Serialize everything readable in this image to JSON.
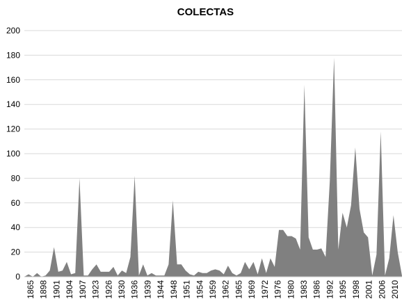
{
  "chart_data": {
    "type": "area",
    "title": "COLECTAS",
    "xlabel": "",
    "ylabel": "",
    "ylim": [
      0,
      200
    ],
    "yticks": [
      0,
      20,
      40,
      60,
      80,
      100,
      120,
      140,
      160,
      180,
      200
    ],
    "grid": true,
    "legend": "none",
    "x_tick_labels": [
      "1865",
      "1898",
      "1901",
      "1904",
      "1907",
      "1923",
      "1926",
      "1930",
      "1936",
      "1939",
      "1944",
      "1948",
      "1951",
      "1954",
      "1959",
      "1962",
      "1965",
      "1969",
      "1972",
      "1976",
      "1980",
      "1983",
      "1986",
      "1992",
      "1995",
      "1998",
      "2001",
      "2006",
      "2010"
    ],
    "series": [
      {
        "values": [
          0,
          2,
          0,
          3,
          0,
          1,
          5,
          24,
          4,
          5,
          12,
          2,
          3,
          80,
          1,
          1,
          6,
          10,
          4,
          4,
          4,
          8,
          1,
          5,
          3,
          16,
          82,
          1,
          10,
          1,
          3,
          1,
          1,
          1,
          10,
          62,
          10,
          10,
          5,
          2,
          1,
          4,
          3,
          3,
          5,
          6,
          5,
          2,
          9,
          3,
          1,
          3,
          12,
          6,
          12,
          2,
          15,
          3,
          15,
          8,
          38,
          38,
          33,
          33,
          31,
          22,
          156,
          32,
          22,
          22,
          23,
          16,
          78,
          178,
          22,
          52,
          40,
          58,
          105,
          55,
          36,
          32,
          1,
          18,
          118,
          1,
          15,
          50,
          20,
          1
        ]
      }
    ],
    "colors": {
      "area": "#808080",
      "grid": "#d9d9d9",
      "axis": "#bfbfbf"
    }
  }
}
